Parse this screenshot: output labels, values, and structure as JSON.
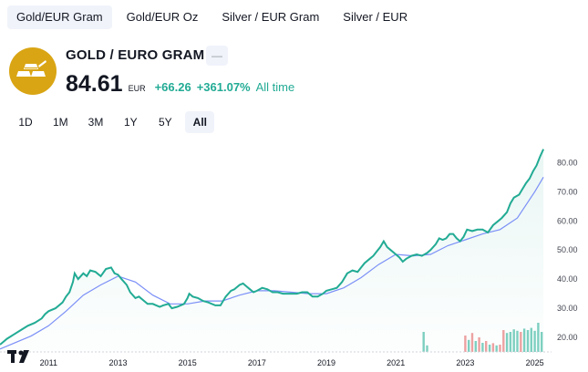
{
  "tabs": [
    {
      "label": "Gold/EUR Gram",
      "active": true
    },
    {
      "label": "Gold/EUR Oz",
      "active": false
    },
    {
      "label": "Silver / EUR Gram",
      "active": false
    },
    {
      "label": "Silver / EUR",
      "active": false
    }
  ],
  "header": {
    "title": "GOLD / EURO GRAM",
    "price": "84.61",
    "currency": "EUR",
    "change": "+66.26",
    "change_percent": "+361.07%",
    "period": "All time",
    "badge": "—"
  },
  "ranges": [
    {
      "label": "1D",
      "active": false
    },
    {
      "label": "1M",
      "active": false
    },
    {
      "label": "3M",
      "active": false
    },
    {
      "label": "1Y",
      "active": false
    },
    {
      "label": "5Y",
      "active": false
    },
    {
      "label": "All",
      "active": true
    }
  ],
  "colors": {
    "accent": "#22ab94",
    "brand": "#d9a514",
    "ma": "#7b8ff7"
  },
  "chart_data": {
    "type": "line",
    "x_ticks": [
      "2011",
      "2013",
      "2015",
      "2017",
      "2019",
      "2021",
      "2023",
      "2025"
    ],
    "y_ticks": [
      "20.00",
      "30.00",
      "40.00",
      "50.00",
      "60.00",
      "70.00",
      "80.00"
    ],
    "ylim": [
      15,
      87
    ],
    "xlim": [
      2009.6,
      2025.3
    ],
    "series": [
      {
        "values": [
          [
            2009.6,
            17.5
          ],
          [
            2009.8,
            19.5
          ],
          [
            2010.0,
            21
          ],
          [
            2010.2,
            22.5
          ],
          [
            2010.4,
            24
          ],
          [
            2010.6,
            25
          ],
          [
            2010.8,
            26.5
          ],
          [
            2010.9,
            28
          ],
          [
            2011.0,
            29
          ],
          [
            2011.2,
            30
          ],
          [
            2011.4,
            32
          ],
          [
            2011.5,
            34
          ],
          [
            2011.6,
            35.5
          ],
          [
            2011.7,
            39
          ],
          [
            2011.75,
            42
          ],
          [
            2011.85,
            40
          ],
          [
            2012.0,
            42
          ],
          [
            2012.1,
            41
          ],
          [
            2012.2,
            43
          ],
          [
            2012.35,
            42.5
          ],
          [
            2012.5,
            41
          ],
          [
            2012.65,
            43.5
          ],
          [
            2012.8,
            44
          ],
          [
            2012.9,
            42
          ],
          [
            2013.0,
            41.5
          ],
          [
            2013.1,
            40
          ],
          [
            2013.25,
            38
          ],
          [
            2013.35,
            35.5
          ],
          [
            2013.5,
            33.5
          ],
          [
            2013.6,
            34
          ],
          [
            2013.7,
            33
          ],
          [
            2013.85,
            31.5
          ],
          [
            2014.0,
            31.5
          ],
          [
            2014.1,
            31
          ],
          [
            2014.2,
            30.5
          ],
          [
            2014.3,
            31
          ],
          [
            2014.45,
            31.5
          ],
          [
            2014.55,
            30
          ],
          [
            2014.7,
            30.5
          ],
          [
            2014.8,
            31
          ],
          [
            2014.9,
            31.5
          ],
          [
            2015.0,
            33.5
          ],
          [
            2015.05,
            35
          ],
          [
            2015.15,
            34
          ],
          [
            2015.3,
            33.5
          ],
          [
            2015.45,
            32.5
          ],
          [
            2015.6,
            32
          ],
          [
            2015.8,
            31
          ],
          [
            2015.95,
            31
          ],
          [
            2016.1,
            34
          ],
          [
            2016.25,
            36
          ],
          [
            2016.35,
            36.5
          ],
          [
            2016.5,
            38
          ],
          [
            2016.6,
            38.5
          ],
          [
            2016.7,
            37.5
          ],
          [
            2016.8,
            36.5
          ],
          [
            2016.9,
            35.5
          ],
          [
            2017.0,
            36
          ],
          [
            2017.15,
            37
          ],
          [
            2017.3,
            36.5
          ],
          [
            2017.45,
            35.5
          ],
          [
            2017.6,
            35.5
          ],
          [
            2017.75,
            35
          ],
          [
            2017.9,
            35
          ],
          [
            2018.0,
            35
          ],
          [
            2018.15,
            35
          ],
          [
            2018.3,
            35.5
          ],
          [
            2018.45,
            35.5
          ],
          [
            2018.6,
            34
          ],
          [
            2018.75,
            34
          ],
          [
            2018.9,
            35
          ],
          [
            2019.0,
            36
          ],
          [
            2019.15,
            36.5
          ],
          [
            2019.3,
            37
          ],
          [
            2019.45,
            39
          ],
          [
            2019.6,
            42
          ],
          [
            2019.75,
            43
          ],
          [
            2019.9,
            42.5
          ],
          [
            2020.0,
            44
          ],
          [
            2020.1,
            45.5
          ],
          [
            2020.25,
            47
          ],
          [
            2020.35,
            48
          ],
          [
            2020.45,
            49.5
          ],
          [
            2020.55,
            51
          ],
          [
            2020.65,
            53
          ],
          [
            2020.75,
            51
          ],
          [
            2020.85,
            50
          ],
          [
            2020.95,
            49
          ],
          [
            2021.1,
            47.5
          ],
          [
            2021.2,
            46
          ],
          [
            2021.3,
            47
          ],
          [
            2021.45,
            48
          ],
          [
            2021.6,
            48.5
          ],
          [
            2021.75,
            48
          ],
          [
            2021.9,
            49
          ],
          [
            2022.0,
            50
          ],
          [
            2022.15,
            52
          ],
          [
            2022.25,
            54
          ],
          [
            2022.35,
            53.5
          ],
          [
            2022.45,
            54
          ],
          [
            2022.55,
            55.5
          ],
          [
            2022.65,
            55.5
          ],
          [
            2022.75,
            54
          ],
          [
            2022.85,
            53
          ],
          [
            2022.95,
            54.5
          ],
          [
            2023.05,
            57
          ],
          [
            2023.2,
            56.5
          ],
          [
            2023.35,
            57
          ],
          [
            2023.5,
            57
          ],
          [
            2023.65,
            56
          ],
          [
            2023.8,
            58.5
          ],
          [
            2023.95,
            60
          ],
          [
            2024.05,
            61
          ],
          [
            2024.2,
            63
          ],
          [
            2024.3,
            66
          ],
          [
            2024.4,
            68
          ],
          [
            2024.55,
            69
          ],
          [
            2024.65,
            71
          ],
          [
            2024.75,
            73
          ],
          [
            2024.85,
            74.5
          ],
          [
            2024.95,
            77
          ],
          [
            2025.05,
            79
          ],
          [
            2025.15,
            82
          ],
          [
            2025.25,
            84.61
          ]
        ]
      },
      {
        "values": [
          [
            2009.6,
            16
          ],
          [
            2010.0,
            18
          ],
          [
            2010.5,
            20.5
          ],
          [
            2011.0,
            24
          ],
          [
            2011.5,
            29
          ],
          [
            2012.0,
            34.5
          ],
          [
            2012.5,
            38
          ],
          [
            2013.0,
            41
          ],
          [
            2013.5,
            39
          ],
          [
            2014.0,
            34.5
          ],
          [
            2014.5,
            31.5
          ],
          [
            2015.0,
            31.5
          ],
          [
            2015.5,
            32.5
          ],
          [
            2016.0,
            32.5
          ],
          [
            2016.5,
            34.5
          ],
          [
            2017.0,
            36
          ],
          [
            2017.5,
            36
          ],
          [
            2018.0,
            35.5
          ],
          [
            2018.5,
            35
          ],
          [
            2019.0,
            35
          ],
          [
            2019.5,
            37
          ],
          [
            2020.0,
            40.5
          ],
          [
            2020.5,
            45
          ],
          [
            2021.0,
            48.5
          ],
          [
            2021.5,
            48
          ],
          [
            2022.0,
            48.5
          ],
          [
            2022.5,
            51.5
          ],
          [
            2023.0,
            53.5
          ],
          [
            2023.5,
            55.5
          ],
          [
            2024.0,
            57
          ],
          [
            2024.5,
            61
          ],
          [
            2025.0,
            70
          ],
          [
            2025.25,
            75
          ]
        ]
      }
    ],
    "volume": [
      {
        "x": 2021.8,
        "v": 0.55,
        "color": "g"
      },
      {
        "x": 2021.9,
        "v": 0.18,
        "color": "g"
      },
      {
        "x": 2023.0,
        "v": 0.45,
        "color": "r"
      },
      {
        "x": 2023.1,
        "v": 0.33,
        "color": "g"
      },
      {
        "x": 2023.2,
        "v": 0.52,
        "color": "r"
      },
      {
        "x": 2023.3,
        "v": 0.3,
        "color": "g"
      },
      {
        "x": 2023.4,
        "v": 0.4,
        "color": "r"
      },
      {
        "x": 2023.5,
        "v": 0.25,
        "color": "g"
      },
      {
        "x": 2023.6,
        "v": 0.3,
        "color": "r"
      },
      {
        "x": 2023.7,
        "v": 0.2,
        "color": "g"
      },
      {
        "x": 2023.8,
        "v": 0.24,
        "color": "r"
      },
      {
        "x": 2023.9,
        "v": 0.18,
        "color": "g"
      },
      {
        "x": 2024.0,
        "v": 0.2,
        "color": "r"
      },
      {
        "x": 2024.1,
        "v": 0.6,
        "color": "r"
      },
      {
        "x": 2024.2,
        "v": 0.52,
        "color": "g"
      },
      {
        "x": 2024.3,
        "v": 0.55,
        "color": "g"
      },
      {
        "x": 2024.4,
        "v": 0.62,
        "color": "g"
      },
      {
        "x": 2024.5,
        "v": 0.58,
        "color": "g"
      },
      {
        "x": 2024.6,
        "v": 0.55,
        "color": "r"
      },
      {
        "x": 2024.7,
        "v": 0.64,
        "color": "g"
      },
      {
        "x": 2024.8,
        "v": 0.6,
        "color": "g"
      },
      {
        "x": 2024.9,
        "v": 0.66,
        "color": "g"
      },
      {
        "x": 2025.0,
        "v": 0.58,
        "color": "g"
      },
      {
        "x": 2025.1,
        "v": 0.8,
        "color": "g"
      },
      {
        "x": 2025.2,
        "v": 0.55,
        "color": "g"
      }
    ]
  }
}
